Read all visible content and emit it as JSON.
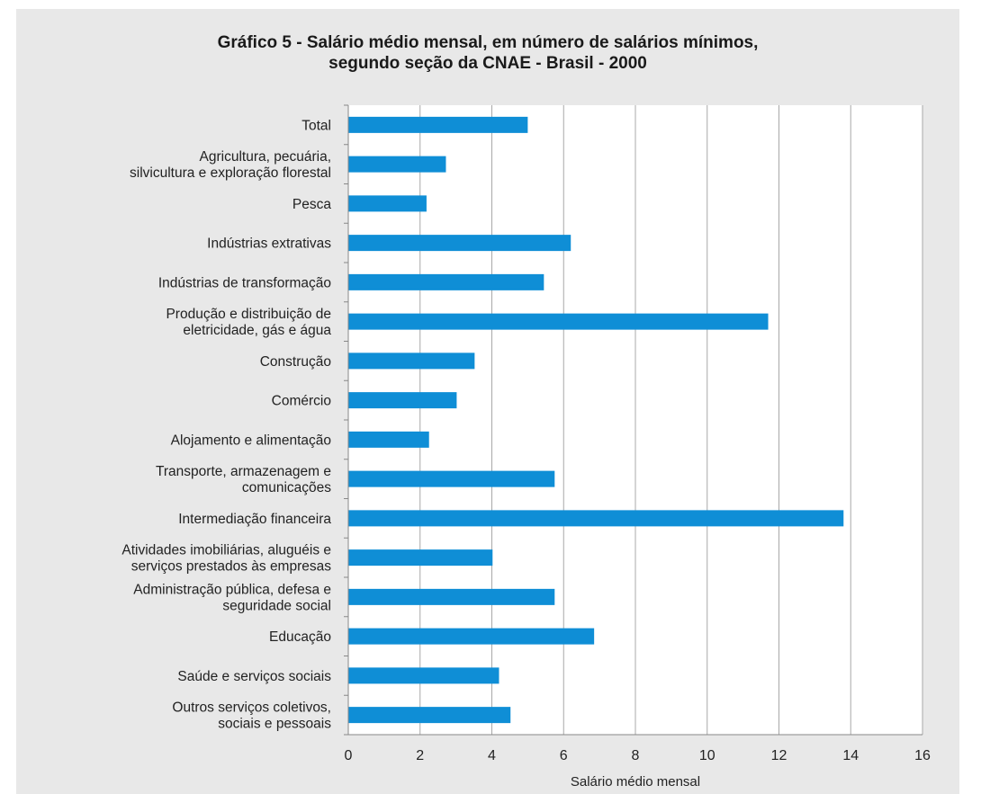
{
  "title": {
    "line1": "Gráfico 5 - Salário médio mensal, em número de salários mínimos,",
    "line2": "segundo seção da CNAE - Brasil - 2000"
  },
  "colors": {
    "bar": "#0f8ed6",
    "panel": "#e8e8e8",
    "plot": "#ffffff",
    "grid": "#a8a8a8"
  },
  "chart_data": {
    "type": "bar",
    "orientation": "horizontal",
    "title": "Gráfico 5 - Salário médio mensal, em número de salários mínimos, segundo seção da CNAE - Brasil - 2000",
    "xlabel": "Salário médio mensal",
    "ylabel": "",
    "xlim": [
      0,
      16
    ],
    "x_ticks": [
      "0",
      "2",
      "4",
      "6",
      "8",
      "10",
      "12",
      "14",
      "16"
    ],
    "grid": "vertical",
    "legend": "none",
    "categories": [
      [
        "Total"
      ],
      [
        "Agricultura, pecuária,",
        "silvicultura e exploração florestal"
      ],
      [
        "Pesca"
      ],
      [
        "Indústrias extrativas"
      ],
      [
        "Indústrias de transformação"
      ],
      [
        "Produção e distribuição de",
        "eletricidade, gás e água"
      ],
      [
        "Construção"
      ],
      [
        "Comércio"
      ],
      [
        "Alojamento e alimentação"
      ],
      [
        "Transporte, armazenagem e",
        "comunicações"
      ],
      [
        "Intermediação financeira"
      ],
      [
        "Atividades imobiliárias, aluguéis e",
        "serviços prestados às empresas"
      ],
      [
        "Administração pública, defesa e",
        "seguridade social"
      ],
      [
        "Educação"
      ],
      [
        "Saúde e serviços sociais"
      ],
      [
        "Outros serviços coletivos,",
        "sociais e pessoais"
      ]
    ],
    "values": [
      5.0,
      2.72,
      2.18,
      6.2,
      5.45,
      11.7,
      3.52,
      3.02,
      2.25,
      5.75,
      13.8,
      4.02,
      5.75,
      6.85,
      4.2,
      4.52
    ]
  }
}
